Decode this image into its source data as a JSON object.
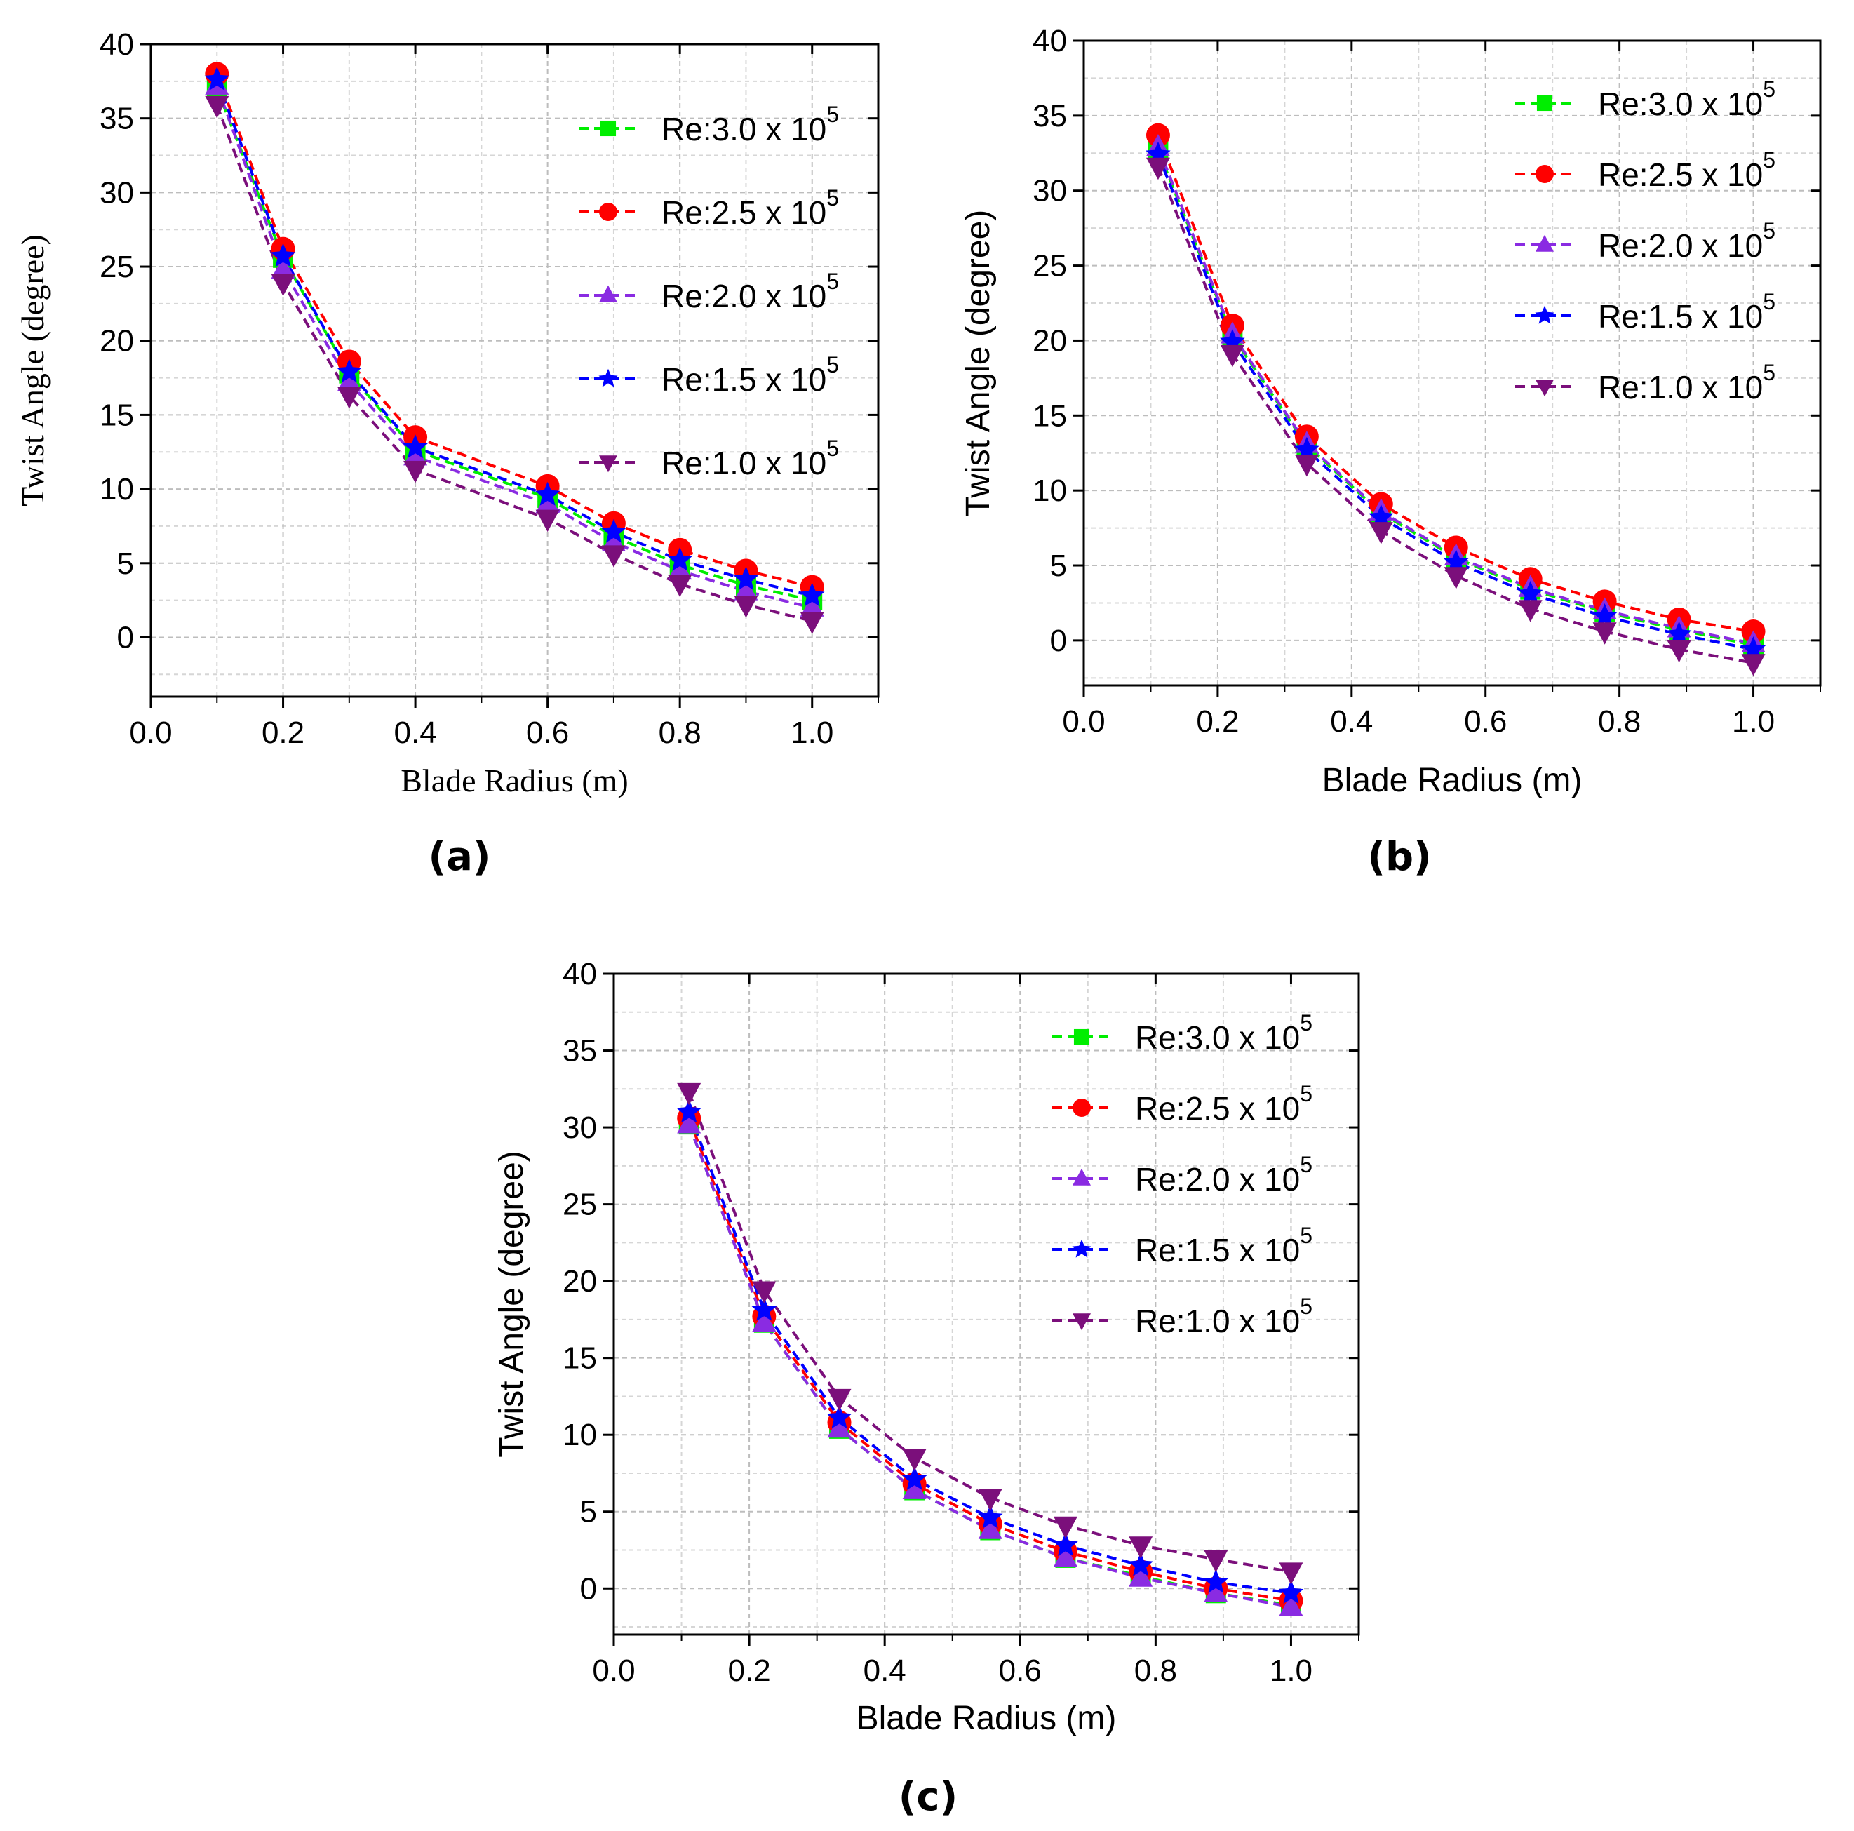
{
  "chart_data": [
    {
      "type": "line",
      "panel_label": "(a)",
      "xlabel": "Blade Radius (m)",
      "ylabel": "Twist Angle (degree)",
      "xlim": [
        0.0,
        1.1
      ],
      "ylim": [
        -4,
        40
      ],
      "xticks": [
        "0.0",
        "0.2",
        "0.4",
        "0.6",
        "0.8",
        "1.0"
      ],
      "yticks": [
        "0",
        "5",
        "10",
        "15",
        "20",
        "25",
        "30",
        "35",
        "40"
      ],
      "grid": true,
      "legend_position": "top-right",
      "x": [
        0.1,
        0.2,
        0.3,
        0.4,
        0.6,
        0.7,
        0.8,
        0.9,
        1.0
      ],
      "series": [
        {
          "name": "Re:3.0 x 10",
          "exp": "5",
          "marker": "square",
          "color": "#00ee00",
          "values": [
            37.0,
            25.6,
            17.8,
            12.6,
            9.4,
            6.8,
            4.9,
            3.5,
            2.5
          ]
        },
        {
          "name": "Re:2.5 x 10",
          "exp": "5",
          "marker": "circle",
          "color": "#ff0000",
          "values": [
            38.0,
            26.2,
            18.6,
            13.5,
            10.2,
            7.7,
            5.9,
            4.5,
            3.4
          ]
        },
        {
          "name": "Re:2.0 x 10",
          "exp": "5",
          "marker": "triangle-up",
          "color": "#8a2be2",
          "values": [
            37.2,
            24.8,
            17.2,
            12.2,
            9.0,
            6.4,
            4.5,
            3.1,
            2.0
          ]
        },
        {
          "name": "Re:1.5 x 10",
          "exp": "5",
          "marker": "star",
          "color": "#0000ff",
          "values": [
            37.6,
            25.7,
            17.9,
            12.8,
            9.6,
            7.1,
            5.2,
            3.9,
            2.8
          ]
        },
        {
          "name": "Re:1.0 x 10",
          "exp": "5",
          "marker": "triangle-down",
          "color": "#7b0f7b",
          "values": [
            35.9,
            23.9,
            16.3,
            11.3,
            8.0,
            5.6,
            3.6,
            2.2,
            1.1
          ]
        }
      ]
    },
    {
      "type": "line",
      "panel_label": "(b)",
      "xlabel": "Blade Radius (m)",
      "ylabel": "Twist Angle (degree)",
      "xlim": [
        0.0,
        1.1
      ],
      "ylim": [
        -3,
        40
      ],
      "xticks": [
        "0.0",
        "0.2",
        "0.4",
        "0.6",
        "0.8",
        "1.0"
      ],
      "yticks": [
        "0",
        "5",
        "10",
        "15",
        "20",
        "25",
        "30",
        "35",
        "40"
      ],
      "grid": true,
      "legend_position": "top-right",
      "x": [
        0.111,
        0.222,
        0.333,
        0.444,
        0.556,
        0.667,
        0.778,
        0.889,
        1.0
      ],
      "series": [
        {
          "name": "Re:3.0 x 10",
          "exp": "5",
          "marker": "square",
          "color": "#00ee00",
          "values": [
            32.7,
            20.3,
            13.0,
            8.5,
            5.5,
            3.4,
            1.9,
            0.7,
            -0.3
          ]
        },
        {
          "name": "Re:2.5 x 10",
          "exp": "5",
          "marker": "circle",
          "color": "#ff0000",
          "values": [
            33.7,
            21.0,
            13.6,
            9.1,
            6.2,
            4.1,
            2.6,
            1.4,
            0.6
          ]
        },
        {
          "name": "Re:2.0 x 10",
          "exp": "5",
          "marker": "triangle-up",
          "color": "#8a2be2",
          "values": [
            32.9,
            20.4,
            13.1,
            8.6,
            5.6,
            3.5,
            2.0,
            0.8,
            -0.2
          ]
        },
        {
          "name": "Re:1.5 x 10",
          "exp": "5",
          "marker": "star",
          "color": "#0000ff",
          "values": [
            32.4,
            19.9,
            12.7,
            8.2,
            5.2,
            3.1,
            1.6,
            0.4,
            -0.6
          ]
        },
        {
          "name": "Re:1.0 x 10",
          "exp": "5",
          "marker": "triangle-down",
          "color": "#7b0f7b",
          "values": [
            31.6,
            19.1,
            11.8,
            7.3,
            4.3,
            2.1,
            0.6,
            -0.6,
            -1.5
          ]
        }
      ]
    },
    {
      "type": "line",
      "panel_label": "(c)",
      "xlabel": "Blade Radius (m)",
      "ylabel": "Twist Angle (degree)",
      "xlim": [
        0.0,
        1.1
      ],
      "ylim": [
        -3,
        40
      ],
      "xticks": [
        "0.0",
        "0.2",
        "0.4",
        "0.6",
        "0.8",
        "1.0"
      ],
      "yticks": [
        "0",
        "5",
        "10",
        "15",
        "20",
        "25",
        "30",
        "35",
        "40"
      ],
      "grid": true,
      "legend_position": "top-right",
      "x": [
        0.111,
        0.222,
        0.333,
        0.444,
        0.556,
        0.667,
        0.778,
        0.889,
        1.0
      ],
      "series": [
        {
          "name": "Re:3.0 x 10",
          "exp": "5",
          "marker": "square",
          "color": "#00ee00",
          "values": [
            30.2,
            17.3,
            10.4,
            6.4,
            3.8,
            2.0,
            0.8,
            -0.3,
            -1.1
          ]
        },
        {
          "name": "Re:2.5 x 10",
          "exp": "5",
          "marker": "circle",
          "color": "#ff0000",
          "values": [
            30.6,
            17.7,
            10.8,
            6.8,
            4.2,
            2.4,
            1.1,
            0.0,
            -0.8
          ]
        },
        {
          "name": "Re:2.0 x 10",
          "exp": "5",
          "marker": "triangle-up",
          "color": "#8a2be2",
          "values": [
            30.2,
            17.3,
            10.4,
            6.4,
            3.8,
            2.0,
            0.7,
            -0.3,
            -1.2
          ]
        },
        {
          "name": "Re:1.5 x 10",
          "exp": "5",
          "marker": "star",
          "color": "#0000ff",
          "values": [
            31.0,
            18.1,
            11.1,
            7.1,
            4.6,
            2.8,
            1.5,
            0.4,
            -0.3
          ]
        },
        {
          "name": "Re:1.0 x 10",
          "exp": "5",
          "marker": "triangle-down",
          "color": "#7b0f7b",
          "values": [
            32.3,
            19.4,
            12.4,
            8.5,
            5.9,
            4.1,
            2.8,
            1.9,
            1.1
          ]
        }
      ]
    }
  ]
}
